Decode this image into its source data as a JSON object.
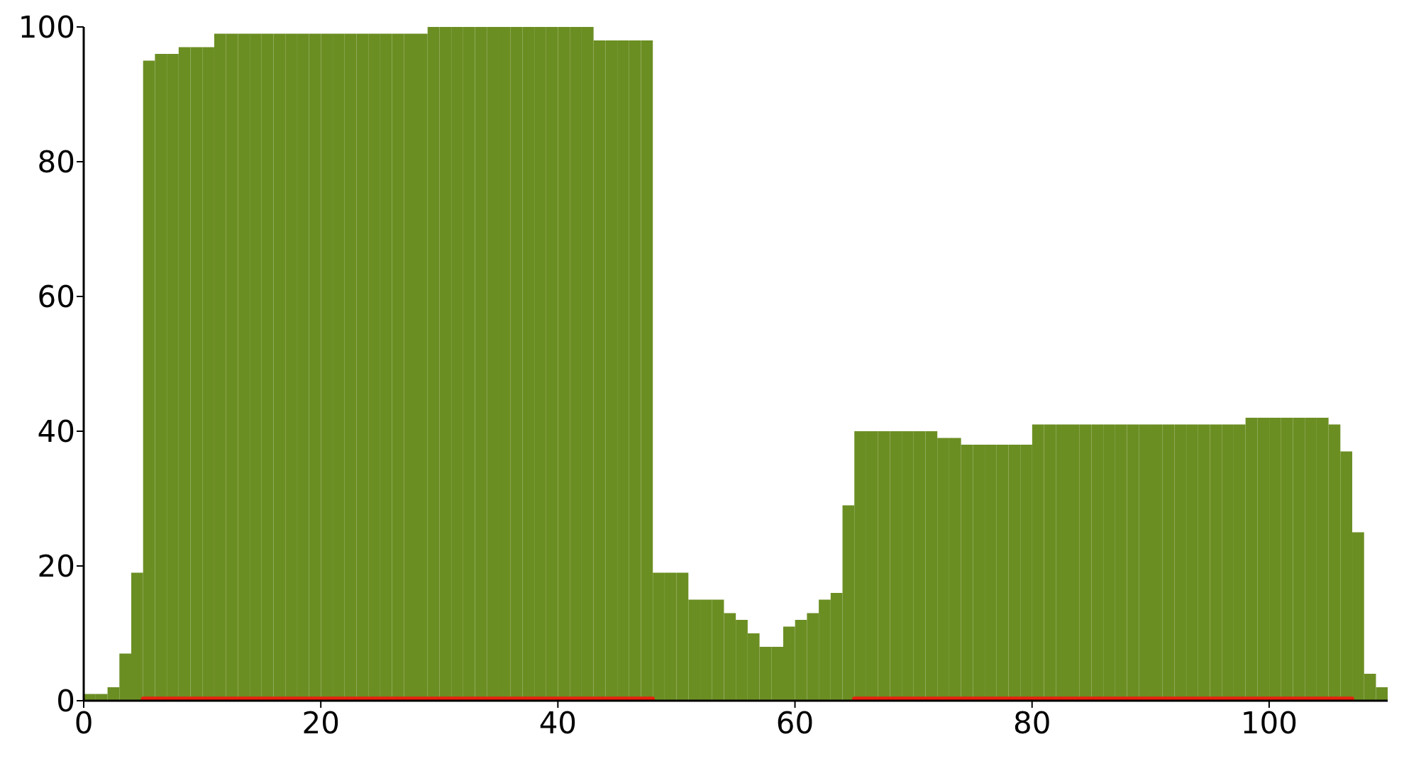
{
  "chart_data": {
    "type": "histogram",
    "bins": [
      0,
      1,
      2,
      3,
      4,
      5,
      6,
      7,
      8,
      9,
      10,
      11,
      12,
      13,
      14,
      15,
      16,
      17,
      18,
      19,
      20,
      21,
      22,
      23,
      24,
      25,
      26,
      27,
      28,
      29,
      30,
      31,
      32,
      33,
      34,
      35,
      36,
      37,
      38,
      39,
      40,
      41,
      42,
      43,
      44,
      45,
      46,
      47,
      48,
      49,
      50,
      51,
      52,
      53,
      54,
      55,
      56,
      57,
      58,
      59,
      60,
      61,
      62,
      63,
      64,
      65,
      66,
      67,
      68,
      69,
      70,
      71,
      72,
      73,
      74,
      75,
      76,
      77,
      78,
      79,
      80,
      81,
      82,
      83,
      84,
      85,
      86,
      87,
      88,
      89,
      90,
      91,
      92,
      93,
      94,
      95,
      96,
      97,
      98,
      99,
      100,
      101,
      102,
      103,
      104,
      105,
      106,
      107,
      108,
      109,
      110
    ],
    "series": [
      {
        "color": "#6b8e23",
        "values": [
          1,
          1,
          2,
          7,
          19,
          95,
          96,
          96,
          97,
          97,
          97,
          99,
          99,
          99,
          99,
          99,
          99,
          99,
          99,
          99,
          99,
          99,
          99,
          99,
          99,
          99,
          99,
          99,
          99,
          100,
          100,
          100,
          100,
          100,
          100,
          100,
          100,
          100,
          100,
          100,
          100,
          100,
          100,
          98,
          98,
          98,
          98,
          98,
          19,
          19,
          19,
          15,
          15,
          15,
          13,
          12,
          10,
          8,
          8,
          11,
          12,
          13,
          15,
          16,
          29,
          40,
          40,
          40,
          40,
          40,
          40,
          40,
          39,
          39,
          38,
          38,
          38,
          38,
          38,
          38,
          41,
          41,
          41,
          41,
          41,
          41,
          41,
          41,
          41,
          41,
          41,
          41,
          41,
          41,
          41,
          41,
          41,
          41,
          42,
          42,
          42,
          42,
          42,
          42,
          42,
          41,
          37,
          25,
          4,
          2
        ]
      },
      {
        "type": "line",
        "color": "#e8220f",
        "x": [
          5,
          48,
          56,
          65,
          107
        ],
        "values": [
          0.3,
          0.3,
          null,
          0.3,
          0.3
        ]
      }
    ],
    "xlim": [
      0,
      110
    ],
    "xticks": [
      0,
      20,
      40,
      60,
      80,
      100
    ],
    "ylim": [
      0,
      100
    ],
    "yticks": [
      0,
      20,
      40,
      60,
      80,
      100
    ]
  }
}
